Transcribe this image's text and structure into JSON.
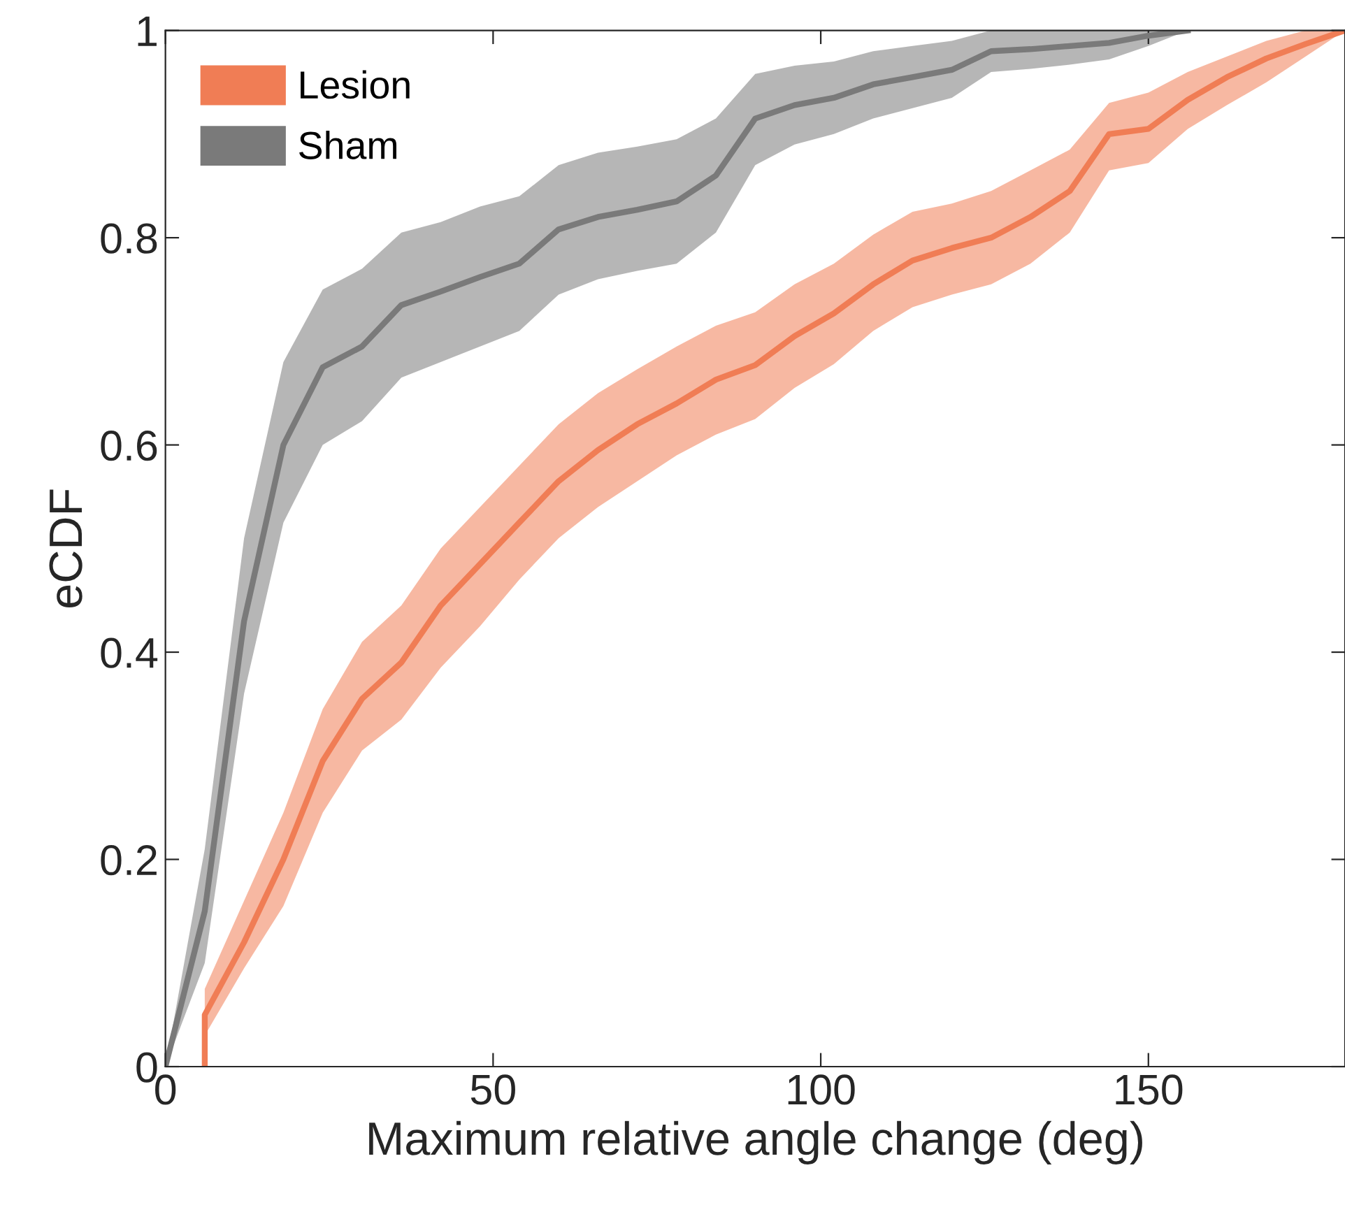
{
  "chart_data": {
    "type": "line",
    "xlabel": "Maximum relative angle change (deg)",
    "ylabel": "eCDF",
    "xlim": [
      0,
      180
    ],
    "ylim": [
      0,
      1
    ],
    "xticks": [
      0,
      50,
      100,
      150
    ],
    "yticks": [
      0,
      0.2,
      0.4,
      0.6,
      0.8,
      1
    ],
    "grid": false,
    "legend": "top left",
    "marker": "none",
    "line_style": "solid",
    "series": [
      {
        "name": "Lesion",
        "color": "#f07d55",
        "x": [
          6,
          6,
          12,
          18,
          24,
          30,
          36,
          42,
          48,
          54,
          60,
          66,
          72,
          78,
          84,
          90,
          96,
          102,
          108,
          114,
          120,
          126,
          132,
          138,
          144,
          150,
          156,
          162,
          168,
          174,
          180
        ],
        "values": [
          0,
          0.05,
          0.12,
          0.2,
          0.295,
          0.355,
          0.39,
          0.445,
          0.485,
          0.525,
          0.565,
          0.595,
          0.62,
          0.64,
          0.663,
          0.677,
          0.705,
          0.727,
          0.755,
          0.778,
          0.79,
          0.8,
          0.82,
          0.845,
          0.9,
          0.905,
          0.933,
          0.955,
          0.973,
          0.987,
          1
        ],
        "lower": [
          0,
          0.03,
          0.095,
          0.155,
          0.245,
          0.305,
          0.335,
          0.385,
          0.425,
          0.47,
          0.51,
          0.54,
          0.565,
          0.59,
          0.61,
          0.625,
          0.655,
          0.678,
          0.71,
          0.733,
          0.745,
          0.755,
          0.775,
          0.805,
          0.865,
          0.872,
          0.905,
          0.928,
          0.95,
          0.975,
          1
        ],
        "upper": [
          0,
          0.075,
          0.16,
          0.245,
          0.345,
          0.41,
          0.445,
          0.5,
          0.54,
          0.58,
          0.62,
          0.65,
          0.673,
          0.695,
          0.715,
          0.728,
          0.755,
          0.775,
          0.803,
          0.825,
          0.833,
          0.845,
          0.865,
          0.885,
          0.93,
          0.94,
          0.96,
          0.975,
          0.99,
          1,
          1
        ]
      },
      {
        "name": "Sham",
        "color": "#7a7a7a",
        "x": [
          0,
          6,
          12,
          18,
          24,
          30,
          36,
          42,
          48,
          54,
          60,
          66,
          72,
          78,
          84,
          90,
          96,
          102,
          108,
          114,
          120,
          126,
          132,
          138,
          144,
          150,
          156
        ],
        "values": [
          0,
          0.15,
          0.43,
          0.6,
          0.675,
          0.695,
          0.735,
          0.748,
          0.762,
          0.775,
          0.808,
          0.82,
          0.827,
          0.835,
          0.86,
          0.915,
          0.928,
          0.935,
          0.948,
          0.955,
          0.962,
          0.98,
          0.982,
          0.985,
          0.988,
          0.995,
          1
        ],
        "lower": [
          0,
          0.1,
          0.36,
          0.525,
          0.6,
          0.623,
          0.665,
          0.68,
          0.695,
          0.71,
          0.745,
          0.76,
          0.768,
          0.775,
          0.805,
          0.87,
          0.89,
          0.9,
          0.915,
          0.925,
          0.935,
          0.96,
          0.963,
          0.967,
          0.972,
          0.985,
          1
        ],
        "upper": [
          0,
          0.21,
          0.51,
          0.68,
          0.75,
          0.77,
          0.805,
          0.815,
          0.83,
          0.84,
          0.87,
          0.882,
          0.888,
          0.895,
          0.915,
          0.958,
          0.966,
          0.97,
          0.98,
          0.985,
          0.99,
          1,
          1,
          1,
          1,
          1,
          1
        ]
      }
    ]
  }
}
